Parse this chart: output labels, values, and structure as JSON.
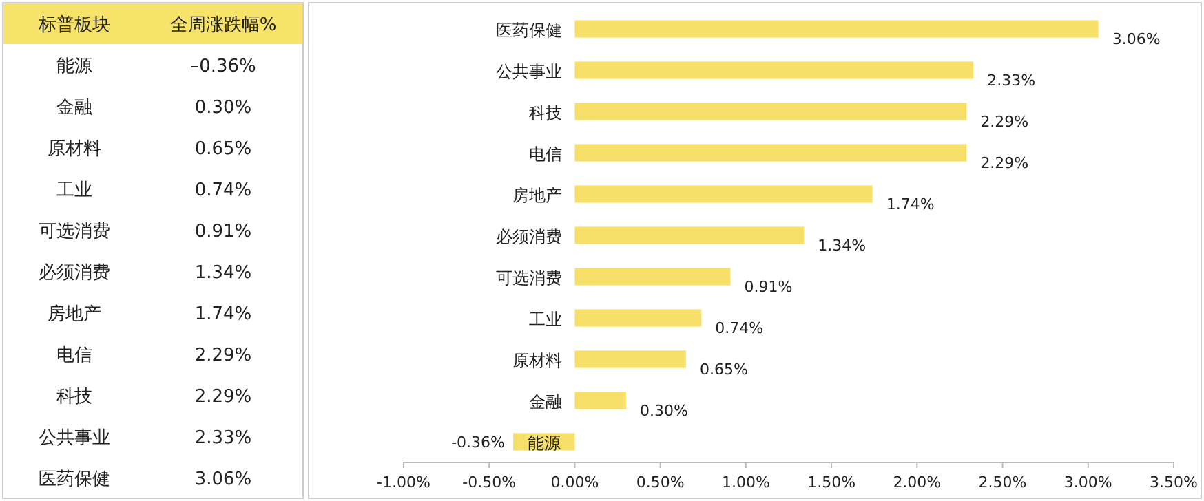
{
  "chart_data": [
    {
      "type": "other",
      "xlabel": "标普板块",
      "ylabel": "全周涨跌幅%",
      "categories": [
        "能源",
        "金融",
        "原材料",
        "工业",
        "可选消费",
        "必须消费",
        "房地产",
        "电信",
        "科技",
        "公共事业",
        "医药保健"
      ],
      "value_labels": [
        "–0.36%",
        "0.30%",
        "0.65%",
        "0.74%",
        "0.91%",
        "1.34%",
        "1.74%",
        "2.29%",
        "2.29%",
        "2.33%",
        "3.06%"
      ],
      "color": "#f7e36a"
    },
    {
      "type": "bar",
      "orientation": "horizontal",
      "categories": [
        "医药保健",
        "公共事业",
        "科技",
        "电信",
        "房地产",
        "必须消费",
        "可选消费",
        "工业",
        "原材料",
        "金融",
        "能源"
      ],
      "values": [
        3.06,
        2.33,
        2.29,
        2.29,
        1.74,
        1.34,
        0.91,
        0.74,
        0.65,
        0.3,
        -0.36
      ],
      "value_labels": [
        "3.06%",
        "2.33%",
        "2.29%",
        "2.29%",
        "1.74%",
        "1.34%",
        "0.91%",
        "0.74%",
        "0.65%",
        "0.30%",
        "-0.36%"
      ],
      "color": "#f7e06a",
      "xlim": [
        -1,
        3.5
      ],
      "xticks": [
        {
          "value": -1,
          "label": "-1.00%"
        },
        {
          "value": -0.5,
          "label": "-0.50%"
        },
        {
          "value": 0,
          "label": "0.00%"
        },
        {
          "value": 0.5,
          "label": "0.50%"
        },
        {
          "value": 1,
          "label": "1.00%"
        },
        {
          "value": 1.5,
          "label": "1.50%"
        },
        {
          "value": 2,
          "label": "2.00%"
        },
        {
          "value": 2.5,
          "label": "2.50%"
        },
        {
          "value": 3,
          "label": "3.00%"
        },
        {
          "value": 3.5,
          "label": "3.50%"
        }
      ],
      "grid": false
    }
  ]
}
